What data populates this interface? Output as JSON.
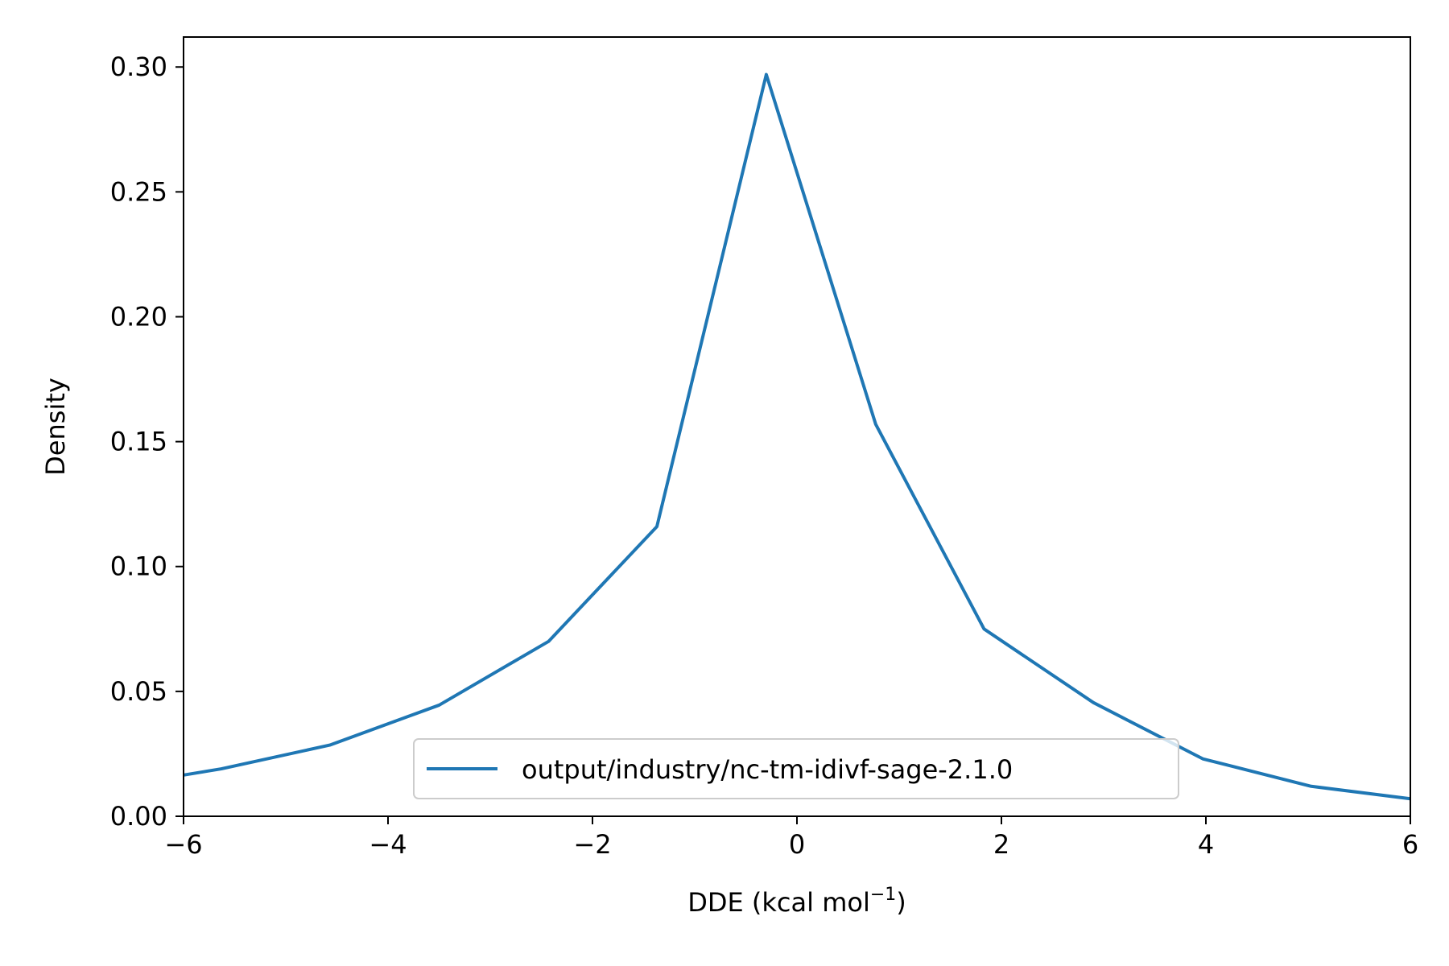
{
  "chart_data": {
    "type": "line",
    "title": "",
    "xlabel": "DDE (kcal mol",
    "xlabel_superscript": "−1",
    "xlabel_suffix": ")",
    "ylabel": "Density",
    "xlim": [
      -6,
      6
    ],
    "ylim": [
      0,
      0.312
    ],
    "xticks": [
      -6,
      -4,
      -2,
      0,
      2,
      4,
      6
    ],
    "xtick_labels": [
      "−6",
      "−4",
      "−2",
      "0",
      "2",
      "4",
      "6"
    ],
    "yticks": [
      0,
      0.05,
      0.1,
      0.15,
      0.2,
      0.25,
      0.3
    ],
    "ytick_labels": [
      "0.00",
      "0.05",
      "0.10",
      "0.15",
      "0.20",
      "0.25",
      "0.30"
    ],
    "grid": false,
    "legend_placement": "lower-center",
    "series": [
      {
        "name": "output/industry/nc-tm-idivf-sage-2.1.0",
        "color": "#1f77b4",
        "x": [
          -6.0,
          -5.63,
          -4.57,
          -3.5,
          -2.43,
          -1.37,
          -0.3,
          0.77,
          1.83,
          2.9,
          3.97,
          5.03,
          6.0
        ],
        "y": [
          0.0165,
          0.019,
          0.0285,
          0.0445,
          0.07,
          0.116,
          0.297,
          0.157,
          0.075,
          0.0455,
          0.023,
          0.012,
          0.007
        ]
      }
    ]
  }
}
